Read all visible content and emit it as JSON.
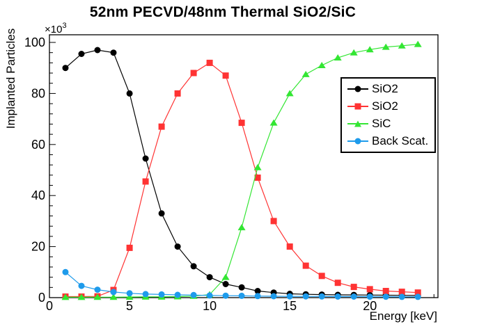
{
  "title": "52nm PECVD/48nm Thermal SiO2/SiC",
  "x_axis": {
    "label": "Energy [keV]",
    "tick_labels": [
      "0",
      "5",
      "10",
      "15",
      "20"
    ]
  },
  "y_axis": {
    "label": "Implanted Particles",
    "multiplier_base": "×10",
    "multiplier_exponent": "3",
    "tick_labels": [
      "0",
      "20",
      "40",
      "60",
      "80",
      "100"
    ]
  },
  "legend": {
    "items": [
      {
        "label": "SiO2",
        "color": "#000000",
        "marker": "circle"
      },
      {
        "label": "SiO2",
        "color": "#ff3333",
        "marker": "square"
      },
      {
        "label": "SiC",
        "color": "#33e633",
        "marker": "triangle"
      },
      {
        "label": "Back Scat.",
        "color": "#1e9beb",
        "marker": "circle"
      }
    ]
  },
  "chart_data": {
    "type": "line",
    "title": "52nm PECVD/48nm Thermal SiO2/SiC",
    "xlabel": "Energy [keV]",
    "ylabel": "Implanted Particles",
    "y_unit_note": "values in ×10^3 particles",
    "xlim": [
      0,
      24.25
    ],
    "ylim": [
      0,
      103
    ],
    "x_major_ticks": [
      0,
      5,
      10,
      15,
      20
    ],
    "x_minor_step": 1,
    "y_major_ticks": [
      0,
      20,
      40,
      60,
      80,
      100
    ],
    "y_minor_step": 4,
    "grid": false,
    "legend_position": "middle-right",
    "x": [
      1,
      2,
      3,
      4,
      5,
      6,
      7,
      8,
      9,
      10,
      11,
      12,
      13,
      14,
      15,
      16,
      17,
      18,
      19,
      20,
      21,
      22,
      23
    ],
    "series": [
      {
        "name": "SiO2",
        "id": "sio2-pecvd",
        "color": "#000000",
        "marker": "circle",
        "values": [
          90,
          95.5,
          97,
          96,
          80,
          54.5,
          33,
          20,
          12.3,
          8,
          5.3,
          4,
          2.6,
          2,
          1.5,
          1.3,
          1.2,
          1.1,
          1.05,
          1,
          0.95,
          0.9,
          0.85
        ]
      },
      {
        "name": "SiO2",
        "id": "sio2-thermal",
        "color": "#ff3333",
        "marker": "square",
        "values": [
          0.4,
          0.4,
          0.5,
          3,
          19.5,
          45.5,
          67,
          80,
          88,
          92,
          87,
          68.5,
          47,
          30,
          20,
          12.5,
          8.5,
          5.8,
          4.2,
          3.3,
          2.6,
          2.3,
          2
        ]
      },
      {
        "name": "SiC",
        "id": "sic",
        "color": "#33e633",
        "marker": "triangle",
        "values": [
          0.15,
          0.15,
          0.2,
          0.2,
          0.25,
          0.3,
          0.3,
          0.4,
          0.6,
          1.2,
          8,
          27.5,
          51,
          68.5,
          80,
          87.5,
          91,
          94,
          96,
          97.2,
          98.2,
          98.7,
          99.3
        ]
      },
      {
        "name": "Back Scat.",
        "id": "back-scat",
        "color": "#1e9beb",
        "marker": "circle",
        "values": [
          10,
          4.6,
          3.1,
          2.2,
          1.7,
          1.4,
          1.25,
          1.1,
          1,
          0.85,
          0.75,
          0.7,
          0.6,
          0.55,
          0.5,
          0.5,
          0.45,
          0.4,
          0.4,
          0.35,
          0.35,
          0.3,
          0.3
        ]
      }
    ]
  }
}
